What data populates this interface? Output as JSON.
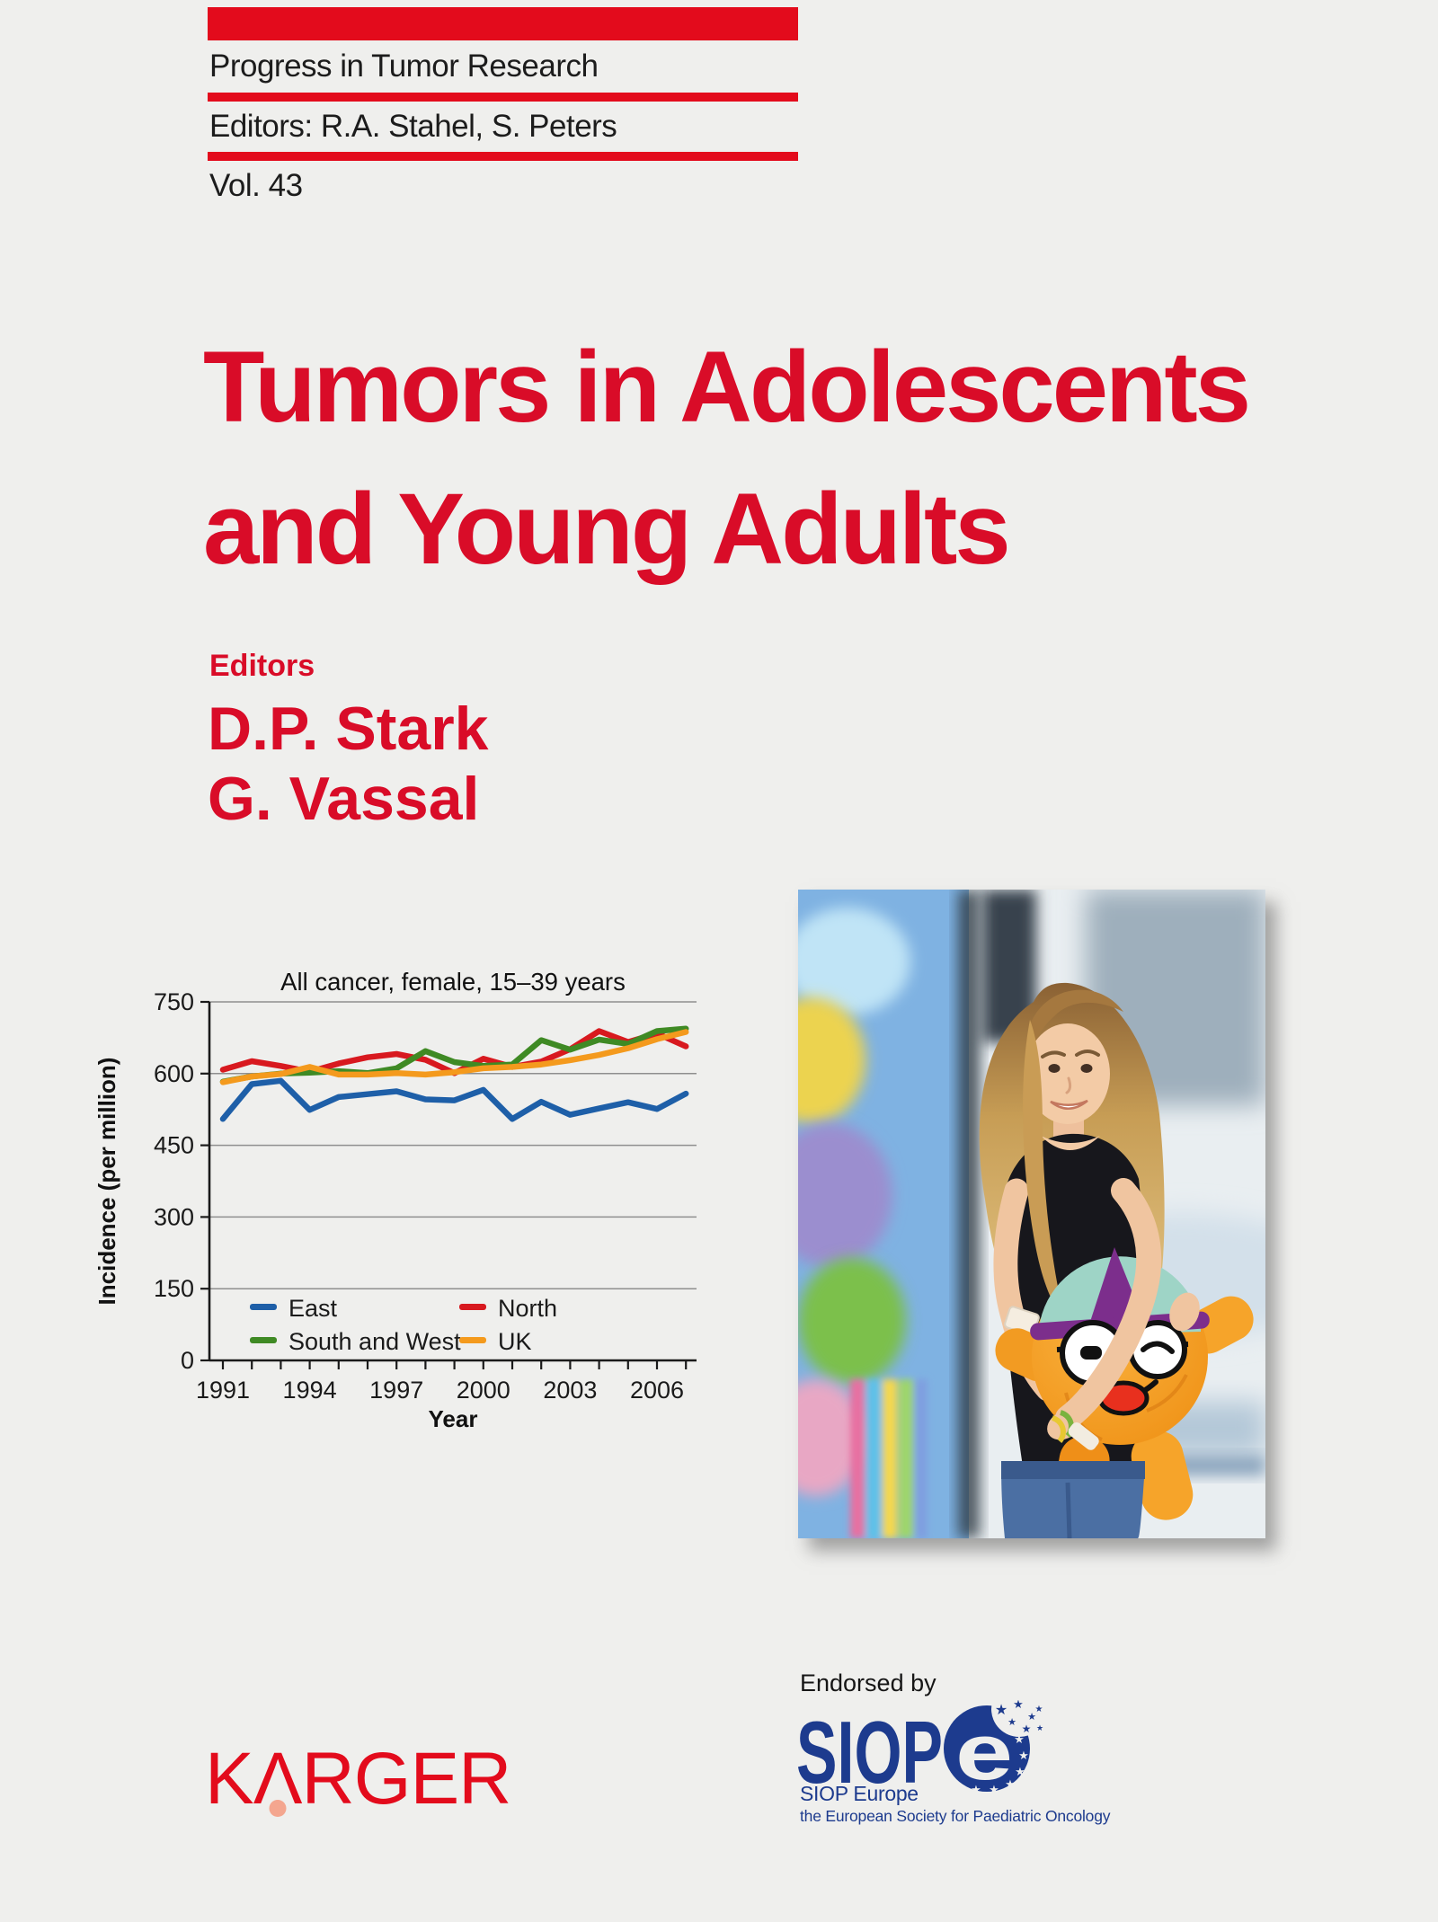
{
  "page": {
    "background": "#efefed",
    "accent_red": "#e30b1c",
    "title_red": "#d90c28"
  },
  "header": {
    "series_title": "Progress in Tumor Research",
    "series_editors": "Editors: R.A. Stahel, S. Peters",
    "volume": "Vol. 43"
  },
  "title": {
    "line1": "Tumors in Adolescents",
    "line2": "and Young Adults"
  },
  "editors": {
    "label": "Editors",
    "name1": "D.P. Stark",
    "name2": "G. Vassal"
  },
  "chart_data": {
    "type": "line",
    "title": "All cancer, female, 15–39 years",
    "xlabel": "Year",
    "ylabel": "Incidence (per million)",
    "ylim": [
      0,
      750
    ],
    "yticks": [
      0,
      150,
      300,
      450,
      600,
      750
    ],
    "x": [
      1991,
      1992,
      1993,
      1994,
      1995,
      1996,
      1997,
      1998,
      1999,
      2000,
      2001,
      2002,
      2003,
      2004,
      2005,
      2006,
      2007
    ],
    "xtick_labels": [
      1991,
      1994,
      1997,
      2000,
      2003,
      2006
    ],
    "grid": true,
    "legend_position": "lower left",
    "series": [
      {
        "name": "East",
        "color": "#1e5fa8",
        "values": [
          505,
          578,
          585,
          524,
          551,
          557,
          563,
          546,
          544,
          566,
          505,
          541,
          514,
          527,
          540,
          526,
          558
        ]
      },
      {
        "name": "North",
        "color": "#d8191f",
        "values": [
          608,
          626,
          616,
          604,
          621,
          634,
          641,
          629,
          601,
          631,
          614,
          625,
          651,
          689,
          666,
          684,
          657
        ]
      },
      {
        "name": "South and West",
        "color": "#3f8a24",
        "values": [
          583,
          594,
          600,
          602,
          605,
          601,
          611,
          647,
          624,
          616,
          619,
          670,
          650,
          671,
          662,
          689,
          694
        ]
      },
      {
        "name": "UK",
        "color": "#f49a1d",
        "values": [
          582,
          594,
          599,
          614,
          598,
          598,
          601,
          598,
          603,
          611,
          614,
          619,
          628,
          639,
          653,
          672,
          687
        ]
      }
    ]
  },
  "photo": {
    "description": "Young woman with long blonde hair leaning against a colorful mural wall, smiling and holding an orange plush mascot toy that wears a teal and purple cap and round glasses"
  },
  "footer": {
    "publisher": {
      "wordmark_k": "K",
      "wordmark_a": "Λ",
      "wordmark_rest": "RGER"
    },
    "endorsed_by": "Endorsed by",
    "siope": {
      "wordmark": "SIOP",
      "e_glyph": "e",
      "org": "SIOP Europe",
      "org_sub": "the European Society for Paediatric Oncology",
      "navy": "#1d3b8e"
    }
  }
}
